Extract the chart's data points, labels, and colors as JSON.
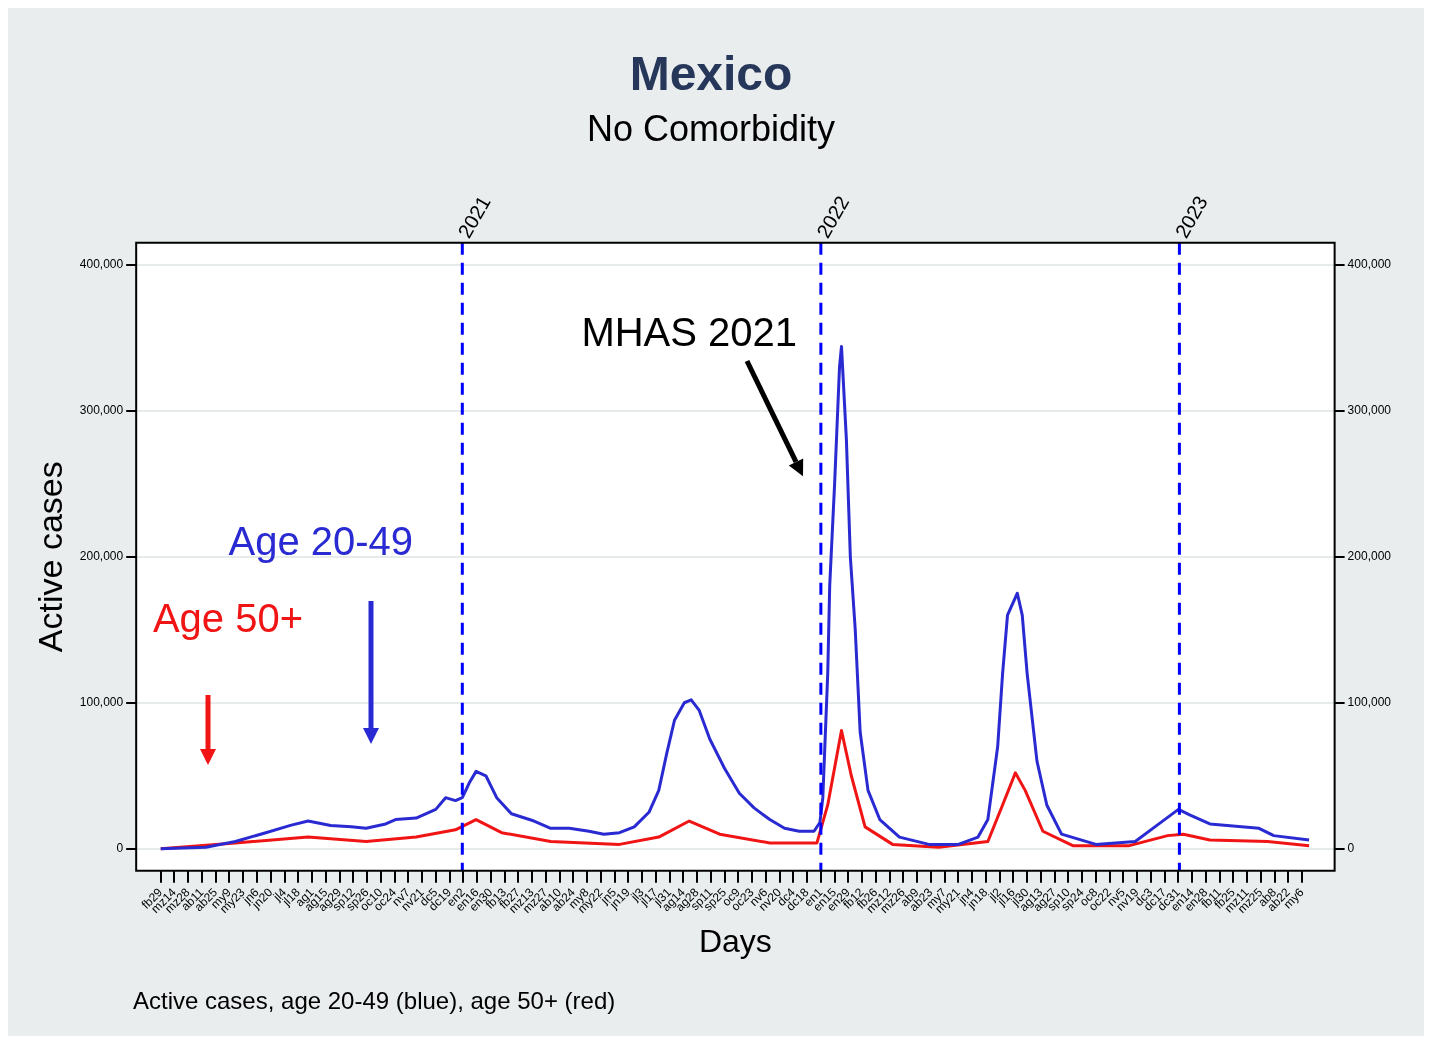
{
  "chart_data": {
    "type": "line",
    "title": "Mexico",
    "subtitle": "No Comorbidity",
    "xlabel": "Days",
    "ylabel": "Active cases",
    "annotations": [
      "MHAS 2021",
      "Active cases, age 20-49 (blue), age 50+ (red)"
    ],
    "xlim": [
      "2020-02-04",
      "2023-06-08"
    ],
    "xticks": [
      {
        "value": "2020-02-29",
        "label": "fb29"
      },
      {
        "value": "2020-03-14",
        "label": "mz14"
      },
      {
        "value": "2020-03-28",
        "label": "mz28"
      },
      {
        "value": "2020-04-11",
        "label": "ab11"
      },
      {
        "value": "2020-04-25",
        "label": "ab25"
      },
      {
        "value": "2020-05-09",
        "label": "my9"
      },
      {
        "value": "2020-05-23",
        "label": "my23"
      },
      {
        "value": "2020-06-06",
        "label": "jn6"
      },
      {
        "value": "2020-06-20",
        "label": "jn20"
      },
      {
        "value": "2020-07-04",
        "label": "jl4"
      },
      {
        "value": "2020-07-18",
        "label": "jl18"
      },
      {
        "value": "2020-08-01",
        "label": "ag1"
      },
      {
        "value": "2020-08-15",
        "label": "ag15"
      },
      {
        "value": "2020-08-29",
        "label": "ag29"
      },
      {
        "value": "2020-09-12",
        "label": "sp12"
      },
      {
        "value": "2020-09-26",
        "label": "sp26"
      },
      {
        "value": "2020-10-10",
        "label": "oc10"
      },
      {
        "value": "2020-10-24",
        "label": "oc24"
      },
      {
        "value": "2020-11-07",
        "label": "nv7"
      },
      {
        "value": "2020-11-21",
        "label": "nv21"
      },
      {
        "value": "2020-12-05",
        "label": "dc5"
      },
      {
        "value": "2020-12-19",
        "label": "dc19"
      },
      {
        "value": "2021-01-02",
        "label": "en2"
      },
      {
        "value": "2021-01-16",
        "label": "en16"
      },
      {
        "value": "2021-01-30",
        "label": "en30"
      },
      {
        "value": "2021-02-13",
        "label": "fb13"
      },
      {
        "value": "2021-02-27",
        "label": "fb27"
      },
      {
        "value": "2021-03-13",
        "label": "mz13"
      },
      {
        "value": "2021-03-27",
        "label": "mz27"
      },
      {
        "value": "2021-04-10",
        "label": "ab10"
      },
      {
        "value": "2021-04-24",
        "label": "ab24"
      },
      {
        "value": "2021-05-08",
        "label": "my8"
      },
      {
        "value": "2021-05-22",
        "label": "my22"
      },
      {
        "value": "2021-06-05",
        "label": "jn5"
      },
      {
        "value": "2021-06-19",
        "label": "jn19"
      },
      {
        "value": "2021-07-03",
        "label": "jl3"
      },
      {
        "value": "2021-07-17",
        "label": "jl17"
      },
      {
        "value": "2021-07-31",
        "label": "jl31"
      },
      {
        "value": "2021-08-14",
        "label": "ag14"
      },
      {
        "value": "2021-08-28",
        "label": "ag28"
      },
      {
        "value": "2021-09-11",
        "label": "sp11"
      },
      {
        "value": "2021-09-25",
        "label": "sp25"
      },
      {
        "value": "2021-10-09",
        "label": "oc9"
      },
      {
        "value": "2021-10-23",
        "label": "oc23"
      },
      {
        "value": "2021-11-06",
        "label": "nv6"
      },
      {
        "value": "2021-11-20",
        "label": "nv20"
      },
      {
        "value": "2021-12-04",
        "label": "dc4"
      },
      {
        "value": "2021-12-18",
        "label": "dc18"
      },
      {
        "value": "2022-01-01",
        "label": "en1"
      },
      {
        "value": "2022-01-15",
        "label": "en15"
      },
      {
        "value": "2022-01-29",
        "label": "en29"
      },
      {
        "value": "2022-02-12",
        "label": "fb12"
      },
      {
        "value": "2022-02-26",
        "label": "fb26"
      },
      {
        "value": "2022-03-12",
        "label": "mz12"
      },
      {
        "value": "2022-03-26",
        "label": "mz26"
      },
      {
        "value": "2022-04-09",
        "label": "ab9"
      },
      {
        "value": "2022-04-23",
        "label": "ab23"
      },
      {
        "value": "2022-05-07",
        "label": "my7"
      },
      {
        "value": "2022-05-21",
        "label": "my21"
      },
      {
        "value": "2022-06-04",
        "label": "jn4"
      },
      {
        "value": "2022-06-18",
        "label": "jn18"
      },
      {
        "value": "2022-07-02",
        "label": "jl2"
      },
      {
        "value": "2022-07-16",
        "label": "jl16"
      },
      {
        "value": "2022-07-30",
        "label": "jl30"
      },
      {
        "value": "2022-08-13",
        "label": "ag13"
      },
      {
        "value": "2022-08-27",
        "label": "ag27"
      },
      {
        "value": "2022-09-10",
        "label": "sp10"
      },
      {
        "value": "2022-09-24",
        "label": "sp24"
      },
      {
        "value": "2022-10-08",
        "label": "oc8"
      },
      {
        "value": "2022-10-22",
        "label": "oc22"
      },
      {
        "value": "2022-11-05",
        "label": "nv5"
      },
      {
        "value": "2022-11-19",
        "label": "nv19"
      },
      {
        "value": "2022-12-03",
        "label": "dc3"
      },
      {
        "value": "2022-12-17",
        "label": "dc17"
      },
      {
        "value": "2022-12-31",
        "label": "dc31"
      },
      {
        "value": "2023-01-14",
        "label": "en14"
      },
      {
        "value": "2023-01-28",
        "label": "en28"
      },
      {
        "value": "2023-02-11",
        "label": "fb11"
      },
      {
        "value": "2023-02-25",
        "label": "fb25"
      },
      {
        "value": "2023-03-11",
        "label": "mz11"
      },
      {
        "value": "2023-03-25",
        "label": "mz25"
      },
      {
        "value": "2023-04-08",
        "label": "ab8"
      },
      {
        "value": "2023-04-22",
        "label": "ab22"
      },
      {
        "value": "2023-05-06",
        "label": "my6"
      }
    ],
    "ylim": [
      -15000,
      415000
    ],
    "yticks": [
      {
        "value": 0,
        "label": "0"
      },
      {
        "value": 100000,
        "label": "100,000"
      },
      {
        "value": 200000,
        "label": "200,000"
      },
      {
        "value": 300000,
        "label": "300,000"
      },
      {
        "value": 400000,
        "label": "400,000"
      }
    ],
    "y2lim": [
      -15000,
      415000
    ],
    "y2ticks": [
      {
        "value": 0,
        "label": "0"
      },
      {
        "value": 100000,
        "label": "100,000"
      },
      {
        "value": 200000,
        "label": "200,000"
      },
      {
        "value": 300000,
        "label": "300,000"
      },
      {
        "value": 400000,
        "label": "400,000"
      }
    ],
    "grid": "y",
    "legend": false,
    "marker": "none",
    "line_style": "solid",
    "ref_lines": [
      {
        "axis": "x",
        "value": "2021-01-01",
        "label": "2021",
        "color": "#0000ff",
        "line_style": "dashed"
      },
      {
        "axis": "x",
        "value": "2022-01-01",
        "label": "2022",
        "color": "#0000ff",
        "line_style": "dashed"
      },
      {
        "axis": "x",
        "value": "2023-01-01",
        "label": "2023",
        "color": "#0000ff",
        "line_style": "dashed"
      }
    ],
    "series": [
      {
        "name": "Age 20-49",
        "color": "#2a2ad2",
        "x": [
          "2020-02-29",
          "2020-04-15",
          "2020-05-15",
          "2020-06-15",
          "2020-07-10",
          "2020-07-28",
          "2020-08-20",
          "2020-09-10",
          "2020-09-25",
          "2020-10-15",
          "2020-10-25",
          "2020-11-15",
          "2020-12-05",
          "2020-12-15",
          "2020-12-25",
          "2021-01-01",
          "2021-01-08",
          "2021-01-15",
          "2021-01-25",
          "2021-02-05",
          "2021-02-20",
          "2021-03-15",
          "2021-04-01",
          "2021-04-20",
          "2021-05-10",
          "2021-05-25",
          "2021-06-10",
          "2021-06-25",
          "2021-07-10",
          "2021-07-20",
          "2021-07-28",
          "2021-08-05",
          "2021-08-15",
          "2021-08-22",
          "2021-08-30",
          "2021-09-10",
          "2021-09-25",
          "2021-10-10",
          "2021-10-25",
          "2021-11-10",
          "2021-11-25",
          "2021-12-10",
          "2021-12-25",
          "2021-12-31",
          "2022-01-03",
          "2022-01-08",
          "2022-01-10",
          "2022-01-15",
          "2022-01-20",
          "2022-01-22",
          "2022-01-27",
          "2022-01-31",
          "2022-02-05",
          "2022-02-10",
          "2022-02-18",
          "2022-03-02",
          "2022-03-22",
          "2022-04-21",
          "2022-05-21",
          "2022-06-10",
          "2022-06-20",
          "2022-06-30",
          "2022-07-05",
          "2022-07-10",
          "2022-07-20",
          "2022-07-25",
          "2022-07-30",
          "2022-08-09",
          "2022-08-19",
          "2022-09-03",
          "2022-10-08",
          "2022-11-17",
          "2022-12-07",
          "2022-12-31",
          "2023-01-12",
          "2023-02-01",
          "2023-03-23",
          "2023-04-07",
          "2023-05-13"
        ],
        "values": [
          0,
          1000,
          5000,
          11000,
          16000,
          19000,
          16000,
          15000,
          14000,
          17000,
          20000,
          21000,
          27000,
          35000,
          33000,
          35000,
          45000,
          53000,
          50000,
          35000,
          24000,
          19000,
          14000,
          14000,
          12000,
          10000,
          11000,
          15000,
          25000,
          40000,
          65000,
          88000,
          100000,
          102000,
          95000,
          75000,
          55000,
          38000,
          28000,
          20000,
          14000,
          12000,
          12000,
          18000,
          35000,
          120000,
          180000,
          250000,
          330000,
          344000,
          280000,
          200000,
          150000,
          80000,
          40000,
          20000,
          8000,
          3000,
          3000,
          8000,
          20000,
          70000,
          120000,
          160000,
          175000,
          160000,
          120000,
          60000,
          30000,
          10000,
          3000,
          5000,
          15000,
          27000,
          23000,
          17000,
          14000,
          9000,
          6000
        ]
      },
      {
        "name": "Age 50+",
        "color": "#f01414",
        "x": [
          "2020-02-29",
          "2020-05-15",
          "2020-07-28",
          "2020-09-25",
          "2020-11-15",
          "2020-12-25",
          "2021-01-15",
          "2021-02-10",
          "2021-04-01",
          "2021-06-10",
          "2021-07-20",
          "2021-08-20",
          "2021-09-20",
          "2021-11-10",
          "2021-12-28",
          "2022-01-08",
          "2022-01-22",
          "2022-02-01",
          "2022-02-15",
          "2022-03-15",
          "2022-05-01",
          "2022-06-20",
          "2022-07-05",
          "2022-07-18",
          "2022-07-28",
          "2022-08-15",
          "2022-09-15",
          "2022-11-10",
          "2022-12-20",
          "2023-01-05",
          "2023-02-01",
          "2023-04-01",
          "2023-05-13"
        ],
        "values": [
          0,
          4000,
          8000,
          5000,
          8000,
          13000,
          20000,
          11000,
          5000,
          3000,
          8000,
          19000,
          10000,
          4000,
          4000,
          30000,
          81000,
          50000,
          15000,
          3000,
          1000,
          5000,
          30000,
          52000,
          40000,
          12000,
          2000,
          2000,
          9000,
          10000,
          6000,
          5000,
          2000
        ]
      }
    ]
  }
}
